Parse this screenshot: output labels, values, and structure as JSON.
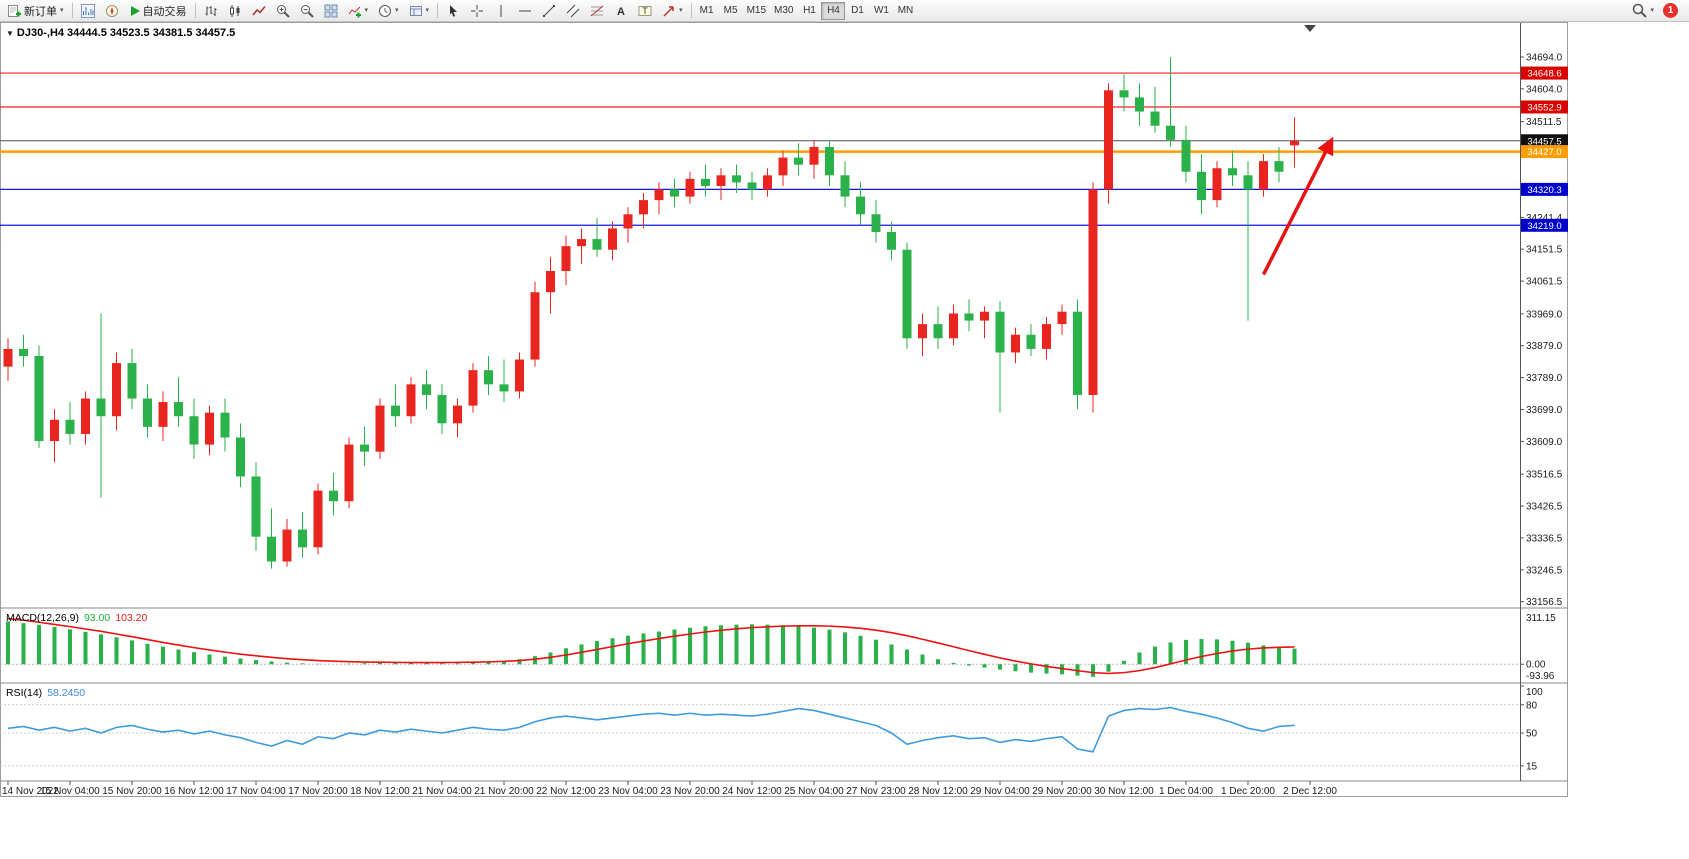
{
  "toolbar": {
    "new_order_label": "新订单",
    "autotrading_label": "自动交易",
    "timeframes": [
      "M1",
      "M5",
      "M15",
      "M30",
      "H1",
      "H4",
      "D1",
      "W1",
      "MN"
    ],
    "active_timeframe": "H4",
    "notification_count": "1",
    "icons": {
      "new-order": "grid-plus",
      "market-watch": "mini-chart",
      "navigator": "compass",
      "autotrading": "play",
      "bars-chart": "ohlc-bars",
      "candles-chart": "candle",
      "line-chart": "zigzag",
      "zoom-in": "magnifier-plus",
      "zoom-out": "magnifier-minus",
      "tile-windows": "grid",
      "indicators": "plus-curve",
      "periods": "clock",
      "templates": "layers",
      "cursor": "pointer",
      "crosshair": "cross",
      "vertical-line": "│",
      "horizontal-line": "─",
      "trendline": "╱",
      "channel": "parallel-lines",
      "fibonacci": "fib-lines",
      "text": "A",
      "text-label": "T",
      "arrows": "↗",
      "search": "magnifier"
    }
  },
  "chart": {
    "header": "DJ30-,H4 34444.5 34523.5 34381.5 34457.5"
  },
  "chart_data": {
    "type": "candlestick",
    "symbol": "DJ30-",
    "timeframe": "H4",
    "last_quote": {
      "open": 34444.5,
      "high": 34523.5,
      "low": 34381.5,
      "close": 34457.5
    },
    "colors": {
      "up": "#e8251f",
      "down": "#2bb14a",
      "macd_hist": "#2bb14a",
      "macd_signal": "#ee1111",
      "rsi": "#3e9bdc"
    },
    "price_range": {
      "max": 34725,
      "min": 33150
    },
    "price_ticks": [
      "34694.0",
      "34604.0",
      "34511.5",
      "34241.4",
      "34151.5",
      "34061.5",
      "33969.0",
      "33879.0",
      "33789.0",
      "33699.0",
      "33609.0",
      "33516.5",
      "33426.5",
      "33336.5",
      "33246.5",
      "33156.5"
    ],
    "hlines": [
      {
        "price": 34648.6,
        "label": "34648.6",
        "color": "#f02020",
        "badge_bg": "#d90000",
        "width": 1.2
      },
      {
        "price": 34552.9,
        "label": "34552.9",
        "color": "#f02020",
        "badge_bg": "#d90000",
        "width": 1.2
      },
      {
        "price": 34457.5,
        "label": "34457.5",
        "color": "#505050",
        "badge_bg": "#111111",
        "width": 1,
        "style": "current-price"
      },
      {
        "price": 34427.0,
        "label": "34427.0",
        "color": "#ff9d00",
        "badge_bg": "#ff9d00",
        "width": 2.5
      },
      {
        "price": 34320.3,
        "label": "34320.3",
        "color": "#1414e6",
        "badge_bg": "#0000cc",
        "width": 1.2
      },
      {
        "price": 34219.0,
        "label": "34219.0",
        "color": "#1414e6",
        "badge_bg": "#0000cc",
        "width": 1.2
      }
    ],
    "ohlc": [
      [
        33820,
        33900,
        33780,
        33870
      ],
      [
        33870,
        33910,
        33820,
        33850
      ],
      [
        33850,
        33880,
        33590,
        33610
      ],
      [
        33610,
        33700,
        33550,
        33670
      ],
      [
        33670,
        33720,
        33600,
        33630
      ],
      [
        33630,
        33750,
        33600,
        33730
      ],
      [
        33730,
        33970,
        33450,
        33680
      ],
      [
        33680,
        33860,
        33640,
        33830
      ],
      [
        33830,
        33870,
        33700,
        33730
      ],
      [
        33730,
        33770,
        33620,
        33650
      ],
      [
        33650,
        33750,
        33610,
        33720
      ],
      [
        33720,
        33790,
        33650,
        33680
      ],
      [
        33680,
        33730,
        33560,
        33600
      ],
      [
        33600,
        33710,
        33570,
        33690
      ],
      [
        33690,
        33730,
        33580,
        33620
      ],
      [
        33620,
        33660,
        33480,
        33510
      ],
      [
        33510,
        33550,
        33300,
        33340
      ],
      [
        33340,
        33420,
        33250,
        33270
      ],
      [
        33270,
        33390,
        33255,
        33360
      ],
      [
        33360,
        33410,
        33280,
        33310
      ],
      [
        33310,
        33490,
        33290,
        33470
      ],
      [
        33470,
        33520,
        33400,
        33440
      ],
      [
        33440,
        33620,
        33420,
        33600
      ],
      [
        33600,
        33650,
        33540,
        33580
      ],
      [
        33580,
        33730,
        33560,
        33710
      ],
      [
        33710,
        33770,
        33650,
        33680
      ],
      [
        33680,
        33790,
        33660,
        33770
      ],
      [
        33770,
        33810,
        33700,
        33740
      ],
      [
        33740,
        33770,
        33630,
        33660
      ],
      [
        33660,
        33730,
        33620,
        33710
      ],
      [
        33710,
        33830,
        33690,
        33810
      ],
      [
        33810,
        33850,
        33740,
        33770
      ],
      [
        33770,
        33840,
        33720,
        33750
      ],
      [
        33750,
        33860,
        33730,
        33840
      ],
      [
        33840,
        34060,
        33820,
        34030
      ],
      [
        34030,
        34130,
        33970,
        34090
      ],
      [
        34090,
        34190,
        34050,
        34160
      ],
      [
        34160,
        34210,
        34110,
        34180
      ],
      [
        34180,
        34240,
        34130,
        34150
      ],
      [
        34150,
        34230,
        34120,
        34210
      ],
      [
        34210,
        34270,
        34170,
        34250
      ],
      [
        34250,
        34310,
        34210,
        34290
      ],
      [
        34290,
        34340,
        34250,
        34320
      ],
      [
        34320,
        34350,
        34270,
        34300
      ],
      [
        34300,
        34370,
        34280,
        34350
      ],
      [
        34350,
        34390,
        34300,
        34330
      ],
      [
        34330,
        34380,
        34290,
        34360
      ],
      [
        34360,
        34390,
        34310,
        34340
      ],
      [
        34340,
        34370,
        34290,
        34320
      ],
      [
        34320,
        34380,
        34300,
        34360
      ],
      [
        34360,
        34430,
        34330,
        34410
      ],
      [
        34410,
        34450,
        34360,
        34390
      ],
      [
        34390,
        34460,
        34350,
        34440
      ],
      [
        34440,
        34455,
        34330,
        34360
      ],
      [
        34360,
        34400,
        34270,
        34300
      ],
      [
        34300,
        34340,
        34220,
        34250
      ],
      [
        34250,
        34290,
        34170,
        34200
      ],
      [
        34200,
        34230,
        34120,
        34150
      ],
      [
        34150,
        34170,
        33870,
        33900
      ],
      [
        33900,
        33970,
        33850,
        33940
      ],
      [
        33940,
        33990,
        33870,
        33900
      ],
      [
        33900,
        33995,
        33880,
        33970
      ],
      [
        33970,
        34010,
        33920,
        33950
      ],
      [
        33950,
        33990,
        33900,
        33975
      ],
      [
        33975,
        34005,
        33690,
        33860
      ],
      [
        33860,
        33930,
        33830,
        33910
      ],
      [
        33910,
        33940,
        33850,
        33870
      ],
      [
        33870,
        33960,
        33840,
        33940
      ],
      [
        33940,
        33995,
        33910,
        33975
      ],
      [
        33975,
        34010,
        33700,
        33740
      ],
      [
        33740,
        34340,
        33690,
        34320
      ],
      [
        34320,
        34620,
        34280,
        34600
      ],
      [
        34600,
        34645,
        34540,
        34580
      ],
      [
        34580,
        34620,
        34500,
        34540
      ],
      [
        34540,
        34610,
        34480,
        34500
      ],
      [
        34500,
        34694,
        34440,
        34460
      ],
      [
        34460,
        34500,
        34340,
        34370
      ],
      [
        34370,
        34420,
        34250,
        34290
      ],
      [
        34290,
        34400,
        34270,
        34380
      ],
      [
        34380,
        34430,
        34330,
        34360
      ],
      [
        34360,
        34400,
        33950,
        34320
      ],
      [
        34320,
        34420,
        34300,
        34400
      ],
      [
        34400,
        34440,
        34340,
        34370
      ],
      [
        34444.5,
        34523.5,
        34381.5,
        34457.5
      ]
    ],
    "time": {
      "label_indices": [
        0,
        4,
        8,
        12,
        16,
        20,
        24,
        28,
        32,
        36,
        40,
        44,
        48,
        52,
        56,
        60,
        64,
        68,
        72,
        76,
        80,
        84
      ],
      "labels": [
        "14 Nov 2022",
        "15 Nov 04:00",
        "15 Nov 20:00",
        "16 Nov 12:00",
        "17 Nov 04:00",
        "17 Nov 20:00",
        "18 Nov 12:00",
        "21 Nov 04:00",
        "21 Nov 20:00",
        "22 Nov 12:00",
        "23 Nov 04:00",
        "23 Nov 20:00",
        "24 Nov 12:00",
        "25 Nov 04:00",
        "27 Nov 23:00",
        "28 Nov 12:00",
        "29 Nov 04:00",
        "29 Nov 20:00",
        "30 Nov 12:00",
        "1 Dec 04:00",
        "1 Dec 20:00",
        "2 Dec 12:00"
      ]
    },
    "arrow": {
      "from_bar": 81,
      "from_price": 34080,
      "to_bar": 85.4,
      "to_price": 34460,
      "color": "#e81212",
      "width": 3.5
    },
    "macd": {
      "label": "MACD(12,26,9)",
      "main_value": "93.00",
      "signal_value": "103.20",
      "scale_max": 311.15,
      "scale_min": -93.96,
      "axis_labels": [
        "311.15",
        "0.00",
        "-93.96"
      ],
      "histogram": [
        255,
        245,
        235,
        222,
        208,
        193,
        178,
        160,
        142,
        122,
        105,
        88,
        72,
        58,
        45,
        34,
        25,
        17,
        10,
        5,
        2,
        0,
        3,
        6,
        8,
        10,
        9,
        7,
        5,
        6,
        9,
        14,
        20,
        30,
        48,
        70,
        95,
        118,
        138,
        155,
        170,
        183,
        195,
        207,
        217,
        226,
        232,
        236,
        238,
        236,
        232,
        226,
        218,
        206,
        190,
        170,
        146,
        118,
        88,
        58,
        30,
        8,
        -8,
        -20,
        -32,
        -42,
        -50,
        -56,
        -60,
        -68,
        -75,
        -45,
        20,
        70,
        105,
        130,
        145,
        150,
        148,
        140,
        128,
        112,
        100,
        93
      ],
      "signal": [
        272,
        262,
        250,
        237,
        224,
        210,
        196,
        180,
        164,
        147,
        130,
        114,
        99,
        85,
        72,
        60,
        50,
        41,
        33,
        27,
        22,
        18,
        15,
        13,
        12,
        11,
        10,
        10,
        10,
        11,
        12,
        14,
        17,
        22,
        30,
        41,
        55,
        71,
        88,
        105,
        122,
        138,
        153,
        167,
        180,
        192,
        202,
        211,
        218,
        223,
        227,
        229,
        229,
        227,
        222,
        214,
        203,
        188,
        170,
        149,
        127,
        104,
        81,
        59,
        38,
        19,
        2,
        -13,
        -26,
        -38,
        -50,
        -55,
        -50,
        -38,
        -20,
        2,
        25,
        46,
        64,
        79,
        90,
        97,
        101,
        103.2
      ]
    },
    "rsi": {
      "label": "RSI(14)",
      "value": "58.2450",
      "range": [
        0,
        100
      ],
      "levels": [
        80,
        50,
        15
      ],
      "axis_labels": [
        "100",
        "80",
        "50",
        "15"
      ],
      "values": [
        55,
        57,
        53,
        56,
        52,
        55,
        50,
        56,
        58,
        54,
        51,
        53,
        49,
        52,
        48,
        45,
        40,
        36,
        42,
        38,
        46,
        44,
        50,
        48,
        53,
        51,
        54,
        52,
        50,
        53,
        56,
        54,
        53,
        56,
        62,
        66,
        68,
        66,
        64,
        66,
        68,
        70,
        71,
        69,
        71,
        69,
        70,
        69,
        68,
        70,
        73,
        76,
        74,
        70,
        66,
        62,
        58,
        50,
        38,
        42,
        45,
        47,
        44,
        45,
        40,
        43,
        41,
        44,
        46,
        33,
        30,
        68,
        74,
        76,
        75,
        77,
        73,
        70,
        66,
        61,
        55,
        52,
        57,
        58.2
      ]
    }
  }
}
